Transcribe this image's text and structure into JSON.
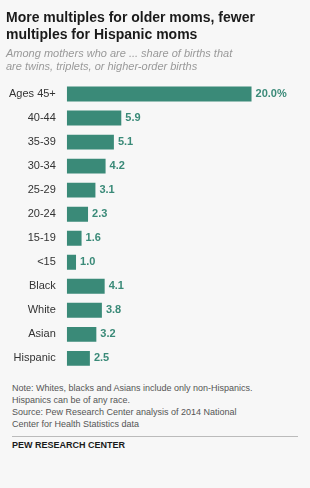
{
  "chart_data": {
    "type": "bar",
    "orientation": "horizontal",
    "title": "More multiples for older moms, fewer\nmultiples for Hispanic moms",
    "subtitle": "Among mothers who are ... share of births that\nare twins, triplets, or higher-order births",
    "categories": [
      "Ages 45+",
      "40-44",
      "35-39",
      "30-34",
      "25-29",
      "20-24",
      "15-19",
      "<15",
      "Black",
      "White",
      "Asian",
      "Hispanic"
    ],
    "values": [
      20.0,
      5.9,
      5.1,
      4.2,
      3.1,
      2.3,
      1.6,
      1.0,
      4.1,
      3.8,
      3.2,
      2.5
    ],
    "value_labels": [
      "20.0%",
      "5.9",
      "5.1",
      "4.2",
      "3.1",
      "2.3",
      "1.6",
      "1.0",
      "4.1",
      "3.8",
      "3.2",
      "2.5"
    ],
    "data_labels": true,
    "color": "#3a8a78",
    "xlim": [
      0,
      22
    ],
    "tick_labels": "y",
    "grid": false,
    "annotations": [
      "Note: Whites, blacks and Asians include only non-Hispanics.",
      "Hispanics can be of any race.",
      "Source: Pew Research Center analysis of 2014 National",
      "Center for Health Statistics data",
      "PEW RESEARCH CENTER"
    ]
  }
}
